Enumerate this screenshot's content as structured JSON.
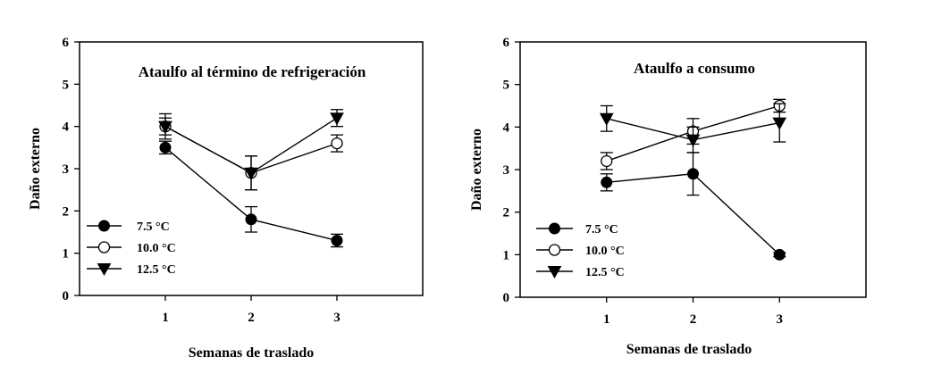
{
  "chart_data": [
    {
      "type": "line",
      "title": "Ataulfo al término de refrigeración",
      "xlabel": "Semanas de traslado",
      "ylabel": "Daño externo",
      "x": [
        1,
        2,
        3
      ],
      "xticks": [
        "1",
        "2",
        "3"
      ],
      "xlim": [
        0,
        4
      ],
      "yticks": [
        "0",
        "1",
        "2",
        "3",
        "4",
        "5",
        "6"
      ],
      "ylim": [
        0,
        6
      ],
      "grid": false,
      "legend_position": "bottom-left",
      "series": [
        {
          "name": "7.5 °C",
          "marker": "filled-circle",
          "values": [
            3.5,
            1.8,
            1.3
          ],
          "errors": [
            0.15,
            0.3,
            0.15
          ]
        },
        {
          "name": "10.0 °C",
          "marker": "open-circle",
          "values": [
            4.0,
            2.9,
            3.6
          ],
          "errors": [
            0.2,
            0.4,
            0.2
          ]
        },
        {
          "name": "12.5 °C",
          "marker": "filled-triangle-down",
          "values": [
            4.0,
            2.9,
            4.2
          ],
          "errors": [
            0.3,
            0.4,
            0.2
          ]
        }
      ]
    },
    {
      "type": "line",
      "title": "Ataulfo a consumo",
      "xlabel": "Semanas de traslado",
      "ylabel": "Daño externo",
      "x": [
        1,
        2,
        3
      ],
      "xticks": [
        "1",
        "2",
        "3"
      ],
      "xlim": [
        0,
        4
      ],
      "yticks": [
        "0",
        "1",
        "2",
        "3",
        "4",
        "5",
        "6"
      ],
      "ylim": [
        0,
        6
      ],
      "grid": false,
      "legend_position": "bottom-left",
      "series": [
        {
          "name": "7.5 °C",
          "marker": "filled-circle",
          "values": [
            2.7,
            2.9,
            1.0
          ],
          "errors": [
            0.2,
            0.5,
            0.05
          ]
        },
        {
          "name": "10.0 °C",
          "marker": "open-circle",
          "values": [
            3.2,
            3.9,
            4.5
          ],
          "errors": [
            0.2,
            0.3,
            0.15
          ]
        },
        {
          "name": "12.5 °C",
          "marker": "filled-triangle-down",
          "values": [
            4.2,
            3.7,
            4.1
          ],
          "errors": [
            0.3,
            0.3,
            0.45
          ]
        }
      ]
    }
  ]
}
